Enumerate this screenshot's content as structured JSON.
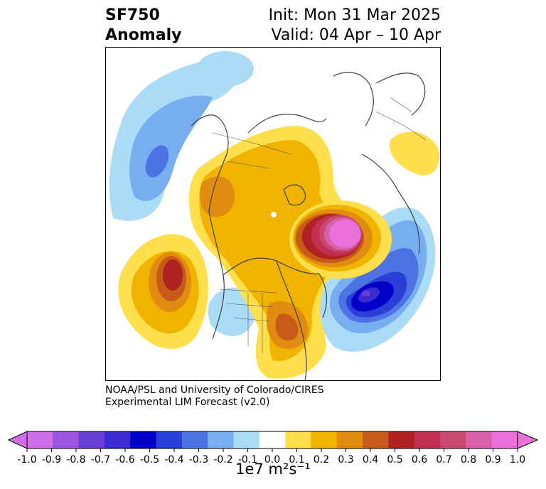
{
  "title": {
    "variable": "SF750",
    "subtitle": "Anomaly",
    "init": "Init: Mon 31 Mar 2025",
    "valid": "Valid: 04 Apr – 10 Apr"
  },
  "credit": {
    "line1": "NOAA/PSL and University of Colorado/CIRES",
    "line2": "Experimental LIM Forecast (v2.0)"
  },
  "colorbar": {
    "unit_label": "1e7 m²s⁻¹",
    "ticks": [
      "-1.0",
      "-0.9",
      "-0.8",
      "-0.7",
      "-0.6",
      "-0.5",
      "-0.4",
      "-0.3",
      "-0.2",
      "-0.1",
      "0.0",
      "0.1",
      "0.2",
      "0.3",
      "0.4",
      "0.5",
      "0.6",
      "0.7",
      "0.8",
      "0.9",
      "1.0"
    ],
    "colors": [
      "#d070e8",
      "#9b55e0",
      "#6a3fd8",
      "#3c2ad2",
      "#0000c8",
      "#2a3ed8",
      "#4c72e4",
      "#76aef0",
      "#aadcf8",
      "#ffffff",
      "#ffe04c",
      "#f0b400",
      "#e08c10",
      "#c85a18",
      "#b02222",
      "#c03050",
      "#c84870",
      "#d860a8",
      "#e870d8"
    ],
    "neg_extend_color": "#d070e8",
    "pos_extend_color": "#e870d8"
  }
}
